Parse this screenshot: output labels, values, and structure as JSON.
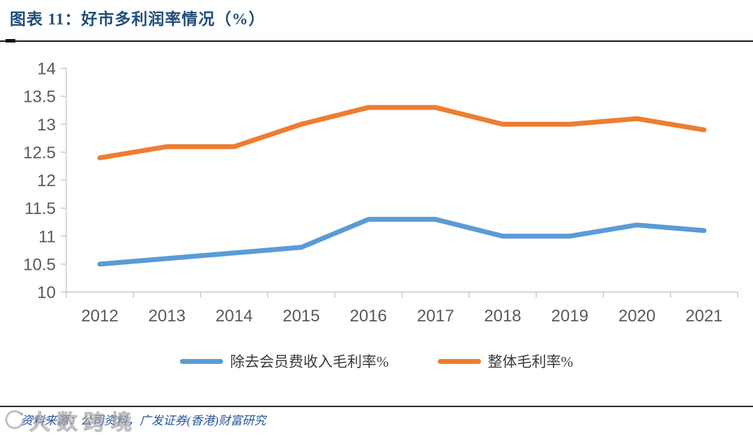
{
  "header": {
    "title": "图表 11：好市多利润率情况（%）",
    "title_color": "#1f4e79"
  },
  "chart_data": {
    "type": "line",
    "title": "好市多利润率情况（%）",
    "categories": [
      "2012",
      "2013",
      "2014",
      "2015",
      "2016",
      "2017",
      "2018",
      "2019",
      "2020",
      "2021"
    ],
    "series": [
      {
        "name": "除去会员费收入毛利率%",
        "color": "#5b9bd5",
        "values": [
          10.5,
          10.6,
          10.7,
          10.8,
          11.3,
          11.3,
          11.0,
          11.0,
          11.2,
          11.1
        ]
      },
      {
        "name": "整体毛利率%",
        "color": "#ed7d31",
        "values": [
          12.4,
          12.6,
          12.6,
          13.0,
          13.3,
          13.3,
          13.0,
          13.0,
          13.1,
          12.9
        ]
      }
    ],
    "xlabel": "",
    "ylabel": "",
    "ylim": [
      10,
      14
    ],
    "ytick_step": 0.5,
    "grid": false,
    "legend_position": "bottom",
    "axis_color": "#c9c9c9",
    "tick_label_color": "#595959",
    "line_width": 7
  },
  "footer": {
    "source": "资料来源：公司资料，广发证券(香港)财富研究",
    "source_color": "#2a5699"
  },
  "watermark": {
    "logo_icon": "circular-arrow-logo",
    "text": "大数跨境"
  }
}
